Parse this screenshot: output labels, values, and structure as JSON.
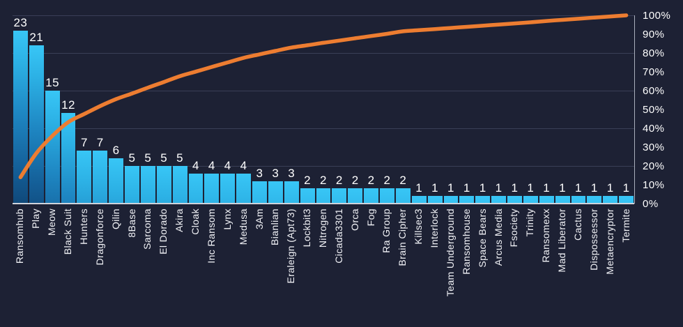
{
  "chart_data": {
    "type": "pareto",
    "title": "",
    "subtitle": "",
    "categories": [
      "Ransomhub",
      "Play",
      "Meow",
      "Black Suit",
      "Hunters",
      "Dragonforce",
      "Qilin",
      "8Base",
      "Sarcoma",
      "El Dorado",
      "Akira",
      "Cloak",
      "Inc Ransom",
      "Lynx",
      "Medusa",
      "3Am",
      "Bianlian",
      "Eraleign (Apt73)",
      "Lockbit3",
      "Nitrogen",
      "Cicada3301",
      "Orca",
      "Fog",
      "Ra Group",
      "Brain Cipher",
      "Killsec3",
      "Interlock",
      "Team Underground",
      "Ransomhouse",
      "Space Bears",
      "Arcus Media",
      "Fsociety",
      "Trinity",
      "Ransomexx",
      "Mad Liberator",
      "Cactus",
      "Dispossessor",
      "Metaencryptor",
      "Termite"
    ],
    "series": [
      {
        "name": "count",
        "type": "bar",
        "values": [
          23,
          21,
          15,
          12,
          7,
          7,
          6,
          5,
          5,
          5,
          5,
          4,
          4,
          4,
          4,
          3,
          3,
          3,
          2,
          2,
          2,
          2,
          2,
          2,
          2,
          1,
          1,
          1,
          1,
          1,
          1,
          1,
          1,
          1,
          1,
          1,
          1,
          1,
          1
        ]
      },
      {
        "name": "cumulative-percent",
        "type": "line",
        "values": [
          14.0,
          26.8,
          36.0,
          43.3,
          47.6,
          51.8,
          55.5,
          58.5,
          61.6,
          64.6,
          67.7,
          70.1,
          72.6,
          75.0,
          77.4,
          79.3,
          81.1,
          82.9,
          84.1,
          85.4,
          86.6,
          87.8,
          89.0,
          90.2,
          91.5,
          92.1,
          92.7,
          93.3,
          93.9,
          94.5,
          95.1,
          95.7,
          96.3,
          97.0,
          97.6,
          98.2,
          98.8,
          99.4,
          100.0
        ]
      }
    ],
    "bar_value_labels_visible": true,
    "left_axis": {
      "min": 0,
      "max": 25,
      "gridline_step": 5,
      "labels_visible": false
    },
    "right_axis": {
      "min": 0,
      "max": 100,
      "step": 10,
      "tick_labels": [
        "100%",
        "90%",
        "80%",
        "70%",
        "60%",
        "50%",
        "40%",
        "30%",
        "20%",
        "10%",
        "0%"
      ]
    },
    "grid": true,
    "legend": null,
    "colors": {
      "background": "#1d2134",
      "bar_gradient_top": "#38c6f6",
      "bar_gradient_bottom": "#0e406e",
      "cumulative_line": "#ed7d31",
      "gridline": "#3a3f57",
      "axis_line": "#cfd3db",
      "right_axis_line": "#aab0bd",
      "text": "#ffffff"
    }
  }
}
